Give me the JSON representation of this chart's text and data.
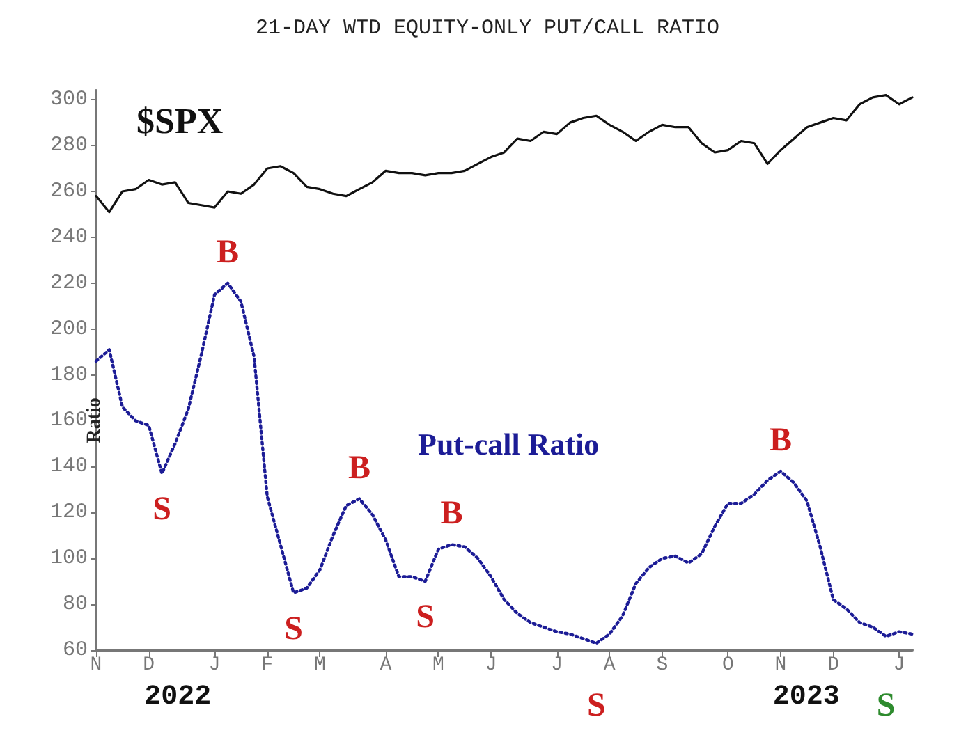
{
  "chart_data": {
    "type": "line",
    "title": "21-DAY WTD EQUITY-ONLY PUT/CALL RATIO",
    "ylabel": "Ratio",
    "categories": [
      "N",
      null,
      null,
      null,
      "D",
      null,
      null,
      null,
      null,
      "J",
      null,
      null,
      null,
      "F",
      null,
      null,
      null,
      "M",
      null,
      null,
      null,
      null,
      "A",
      null,
      null,
      null,
      "M",
      null,
      null,
      null,
      "J",
      null,
      null,
      null,
      null,
      "J",
      null,
      null,
      null,
      "A",
      null,
      null,
      null,
      "S",
      null,
      null,
      null,
      null,
      "O",
      null,
      null,
      null,
      "N",
      null,
      null,
      null,
      "D",
      null,
      null,
      null,
      null,
      "J",
      null
    ],
    "ylim": [
      60,
      304
    ],
    "yticks": [
      60,
      80,
      100,
      120,
      140,
      160,
      180,
      200,
      220,
      240,
      260,
      280,
      300
    ],
    "grid": false,
    "legend": false,
    "marker": "none",
    "series": [
      {
        "name": "$SPX",
        "color": "#111111",
        "line_style": "solid",
        "values": [
          258,
          251,
          260,
          261,
          265,
          263,
          264,
          255,
          254,
          253,
          260,
          259,
          263,
          270,
          271,
          268,
          262,
          261,
          259,
          258,
          261,
          264,
          269,
          268,
          268,
          267,
          268,
          268,
          269,
          272,
          275,
          277,
          283,
          282,
          286,
          285,
          290,
          292,
          293,
          289,
          286,
          282,
          286,
          289,
          288,
          288,
          281,
          277,
          278,
          282,
          281,
          272,
          278,
          283,
          288,
          290,
          292,
          291,
          298,
          301,
          302,
          298,
          301
        ]
      },
      {
        "name": "Put-call Ratio",
        "color": "#1c1c96",
        "line_style": "dotted",
        "values": [
          186,
          191,
          166,
          160,
          158,
          137,
          150,
          165,
          189,
          215,
          220,
          212,
          188,
          127,
          106,
          85,
          87,
          95,
          110,
          123,
          126,
          119,
          108,
          92,
          92,
          90,
          104,
          106,
          105,
          100,
          92,
          82,
          76,
          72,
          70,
          68,
          67,
          65,
          63,
          67,
          75,
          89,
          96,
          100,
          101,
          98,
          102,
          114,
          124,
          124,
          128,
          134,
          138,
          133,
          125,
          105,
          82,
          78,
          72,
          70,
          66,
          68,
          67
        ]
      }
    ],
    "annotations": [
      {
        "text": "B",
        "y": 220
      },
      {
        "text": "S",
        "y": 137
      },
      {
        "text": "S",
        "y": 85
      },
      {
        "text": "B",
        "y": 126
      },
      {
        "text": "S",
        "y": 90
      },
      {
        "text": "B",
        "y": 106
      },
      {
        "text": "S",
        "y": 63
      },
      {
        "text": "B",
        "y": 138
      },
      {
        "text": "S",
        "y": 66
      },
      "2022",
      "2023"
    ]
  }
}
